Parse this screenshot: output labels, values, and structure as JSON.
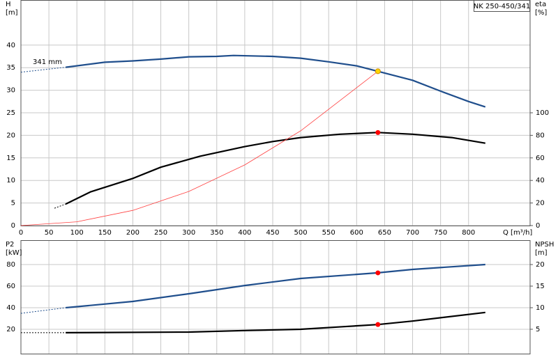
{
  "chart_data": [
    {
      "type": "line",
      "title": "NK 250-450/341",
      "ylabel": "H",
      "yunit": "[m]",
      "y2label": "eta",
      "y2unit": "[%]",
      "xlabel": "Q [m³/h]",
      "annotation": "341 mm",
      "xlim": [
        0,
        910
      ],
      "xticks": [
        0,
        50,
        100,
        150,
        200,
        250,
        300,
        350,
        400,
        450,
        500,
        550,
        600,
        650,
        700,
        750,
        800
      ],
      "ylim": [
        0,
        50
      ],
      "yticks": [
        0,
        5,
        10,
        15,
        20,
        25,
        30,
        35,
        40
      ],
      "y2lim": [
        0,
        200
      ],
      "y2ticks": [
        0,
        20,
        40,
        60,
        80,
        100
      ],
      "grid": true,
      "series": [
        {
          "color": "#1f4e8c",
          "dashed": true,
          "x": [
            0,
            80
          ],
          "values": [
            34.0,
            35.1
          ]
        },
        {
          "color": "#1f4e8c",
          "x": [
            80,
            150,
            200,
            250,
            300,
            350,
            380,
            450,
            500,
            550,
            600,
            638,
            700,
            750,
            800,
            830
          ],
          "values": [
            35.1,
            36.2,
            36.5,
            36.9,
            37.4,
            37.5,
            37.7,
            37.5,
            37.1,
            36.3,
            35.4,
            34.2,
            32.2,
            29.8,
            27.5,
            26.3
          ]
        },
        {
          "color": "#000000",
          "dashed": true,
          "axis": "y2",
          "x": [
            60,
            80
          ],
          "values": [
            15.4,
            19.1
          ]
        },
        {
          "color": "#000000",
          "axis": "y2",
          "x": [
            80,
            125,
            200,
            250,
            320,
            400,
            450,
            500,
            570,
            638,
            700,
            770,
            830
          ],
          "values": [
            19.1,
            30,
            41.8,
            51.7,
            61.5,
            70,
            74.5,
            78,
            81,
            82.5,
            81,
            78,
            73
          ]
        },
        {
          "color": "#ff4040",
          "thin": true,
          "x": [
            0,
            100,
            200,
            300,
            400,
            500,
            638
          ],
          "values": [
            0,
            0.84,
            3.36,
            7.56,
            13.44,
            21.0,
            34.2
          ]
        },
        {
          "color": "#ffd700",
          "marker": true,
          "x": [
            638
          ],
          "values": [
            34.2
          ]
        },
        {
          "color": "#ff0000",
          "marker": true,
          "axis": "y2",
          "x": [
            638
          ],
          "values": [
            82.5
          ]
        }
      ]
    },
    {
      "type": "line",
      "ylabel": "P2",
      "yunit": "[kW]",
      "y2label": "NPSH",
      "y2unit": "[m]",
      "xlim": [
        0,
        910
      ],
      "xticks": [
        0,
        50,
        100,
        150,
        200,
        250,
        300,
        350,
        400,
        450,
        500,
        550,
        600,
        650,
        700,
        750,
        800
      ],
      "ylim": [
        -2.6,
        102.6
      ],
      "yticks": [
        20,
        40,
        60,
        80
      ],
      "y2lim": [
        -0.65,
        25.65
      ],
      "y2ticks": [
        5,
        10,
        15,
        20
      ],
      "grid": true,
      "series": [
        {
          "color": "#1f4e8c",
          "dashed": true,
          "x": [
            0,
            80
          ],
          "values": [
            34.8,
            40
          ]
        },
        {
          "color": "#1f4e8c",
          "x": [
            80,
            200,
            300,
            400,
            500,
            638,
            700,
            830
          ],
          "values": [
            40,
            45.8,
            52.9,
            60.6,
            67.1,
            72.3,
            75.5,
            80
          ]
        },
        {
          "color": "#000000",
          "dashed": true,
          "axis": "y2",
          "x": [
            0,
            80
          ],
          "values": [
            4.2,
            4.2
          ]
        },
        {
          "color": "#000000",
          "axis": "y2",
          "x": [
            80,
            300,
            400,
            500,
            575,
            638,
            700,
            830
          ],
          "values": [
            4.2,
            4.35,
            4.7,
            5,
            5.6,
            6.1,
            6.9,
            8.9
          ]
        },
        {
          "color": "#ff0000",
          "marker": true,
          "x": [
            638
          ],
          "values": [
            72.3
          ]
        },
        {
          "color": "#ff0000",
          "marker": true,
          "axis": "y2",
          "x": [
            638
          ],
          "values": [
            6.1
          ]
        }
      ]
    }
  ]
}
